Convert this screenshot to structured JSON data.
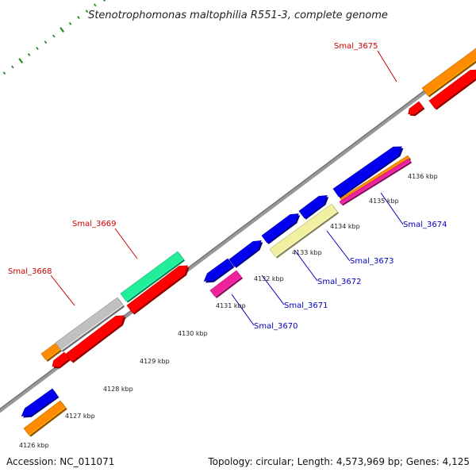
{
  "title": "Stenotrophomonas maltophilia R551-3, complete genome",
  "footer": {
    "accession": "Accession: NC_011071",
    "summary": "Topology: circular; Length: 4,573,969 bp; Genes: 4,125"
  },
  "colors": {
    "backbone": "#808080",
    "dots": "#2a8a2a",
    "label_red": "#cc0000",
    "label_blue": "#0000bb",
    "blue": "#0000ee",
    "red": "#ff0000",
    "orange": "#ff8c00",
    "gray": "#c0c0c0",
    "green": "#22ee99",
    "yellow": "#f0f0a0",
    "magenta": "#ee2299"
  },
  "ticks": [
    "4126 kbp",
    "4127 kbp",
    "4128 kbp",
    "4129 kbp",
    "4130 kbp",
    "4131 kbp",
    "4132 kbp",
    "4133 kbp",
    "4134 kbp",
    "4135 kbp",
    "4136 kbp"
  ],
  "gene_labels": [
    {
      "text": "Smal_3675",
      "color": "red"
    },
    {
      "text": "Smal_3669",
      "color": "red"
    },
    {
      "text": "Smal_3668",
      "color": "red"
    },
    {
      "text": "Smal_3674",
      "color": "blue"
    },
    {
      "text": "Smal_3673",
      "color": "blue"
    },
    {
      "text": "Smal_3672",
      "color": "blue"
    },
    {
      "text": "Smal_3671",
      "color": "blue"
    },
    {
      "text": "Smal_3670",
      "color": "blue"
    }
  ]
}
